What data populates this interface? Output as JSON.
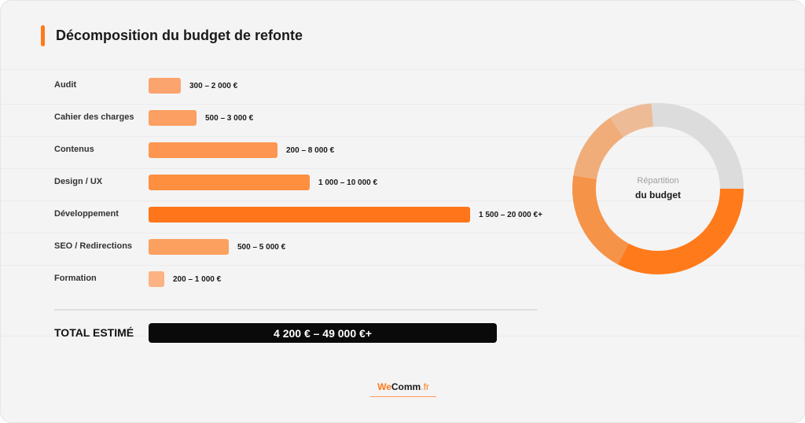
{
  "title": "Décomposition du budget de refonte",
  "chart_data": {
    "type": "bar",
    "orientation": "horizontal",
    "categories": [
      "Audit",
      "Cahier des charges",
      "Contenus",
      "Design / UX",
      "Développement",
      "SEO / Redirections",
      "Formation"
    ],
    "value_labels": [
      "300 – 2 000 €",
      "500 – 3 000 €",
      "200 – 8 000 €",
      "1 000 – 10 000 €",
      "1 500 – 20 000 €+",
      "500 – 5 000 €",
      "200 – 1 000 €"
    ],
    "values": [
      2000,
      3000,
      8000,
      10000,
      20000,
      5000,
      1000
    ],
    "colors": [
      "#fca46e",
      "#fc9f62",
      "#fc9650",
      "#fd8f3f",
      "#ff751a",
      "#fca05f",
      "#fcb282"
    ],
    "total_label": "TOTAL ESTIMÉ",
    "total_value": "4 200 € – 49 000 €+",
    "donut": {
      "title_line1": "Répartition",
      "title_line2": "du budget",
      "segments": [
        {
          "value": 20,
          "color": "#ff7a1a"
        },
        {
          "value": 12,
          "color": "#f59349"
        },
        {
          "value": 8,
          "color": "#f0ad7a"
        },
        {
          "value": 5,
          "color": "#edbc97"
        },
        {
          "value": 16,
          "color": "#dcdcdc"
        }
      ]
    }
  },
  "brand": {
    "we": "We",
    "comm": "Comm",
    "tld": ".fr"
  }
}
